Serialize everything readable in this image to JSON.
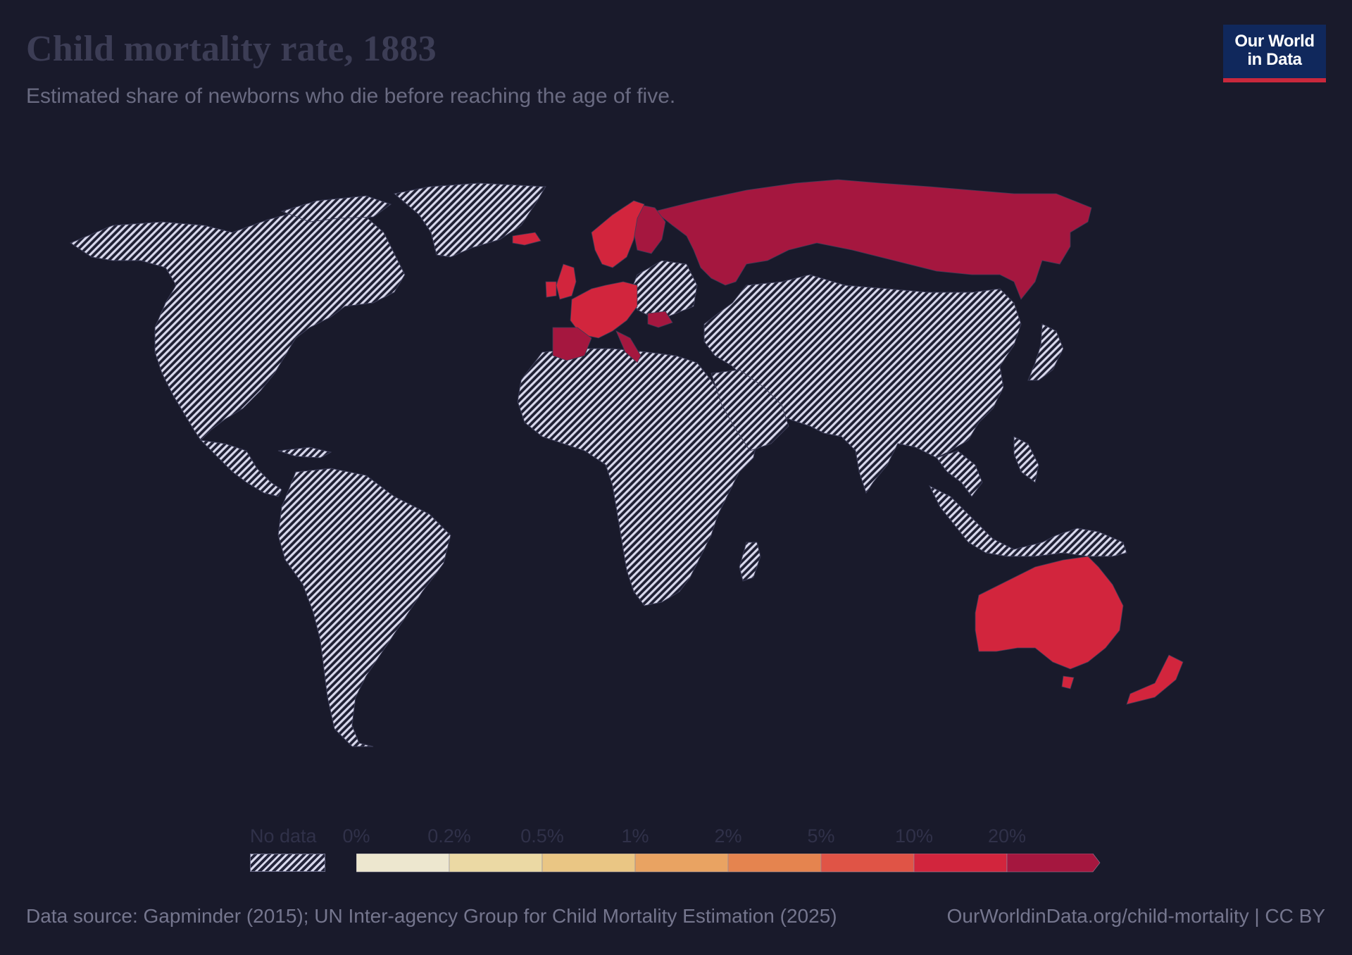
{
  "header": {
    "title": "Child mortality rate, 1883",
    "subtitle": "Estimated share of newborns who die before reaching the age of five."
  },
  "logo": {
    "line1": "Our World",
    "line2": "in Data"
  },
  "legend": {
    "no_data_label": "No data",
    "bins": [
      {
        "label": "0%",
        "color": "#ede7cf"
      },
      {
        "label": "0.2%",
        "color": "#ebd9a4"
      },
      {
        "label": "0.5%",
        "color": "#eac684"
      },
      {
        "label": "1%",
        "color": "#e9a362"
      },
      {
        "label": "2%",
        "color": "#e5844f"
      },
      {
        "label": "5%",
        "color": "#e05446"
      },
      {
        "label": "10%",
        "color": "#d2253d"
      },
      {
        "label": "20%",
        "color": "#a5173f"
      }
    ]
  },
  "map_data": {
    "type": "choropleth",
    "year": 1883,
    "no_data_color": "#d8d8ec",
    "regions_with_data": [
      {
        "name": "Russia",
        "color": "#a5173f",
        "bin": "20%+"
      },
      {
        "name": "Finland",
        "color": "#a5173f",
        "bin": "20%+"
      },
      {
        "name": "Sweden",
        "color": "#d2253d",
        "bin": "10%–20%"
      },
      {
        "name": "Norway",
        "color": "#d2253d",
        "bin": "10%–20%"
      },
      {
        "name": "Denmark",
        "color": "#d2253d",
        "bin": "10%–20%"
      },
      {
        "name": "United Kingdom",
        "color": "#d2253d",
        "bin": "10%–20%"
      },
      {
        "name": "Ireland",
        "color": "#d2253d",
        "bin": "10%–20%"
      },
      {
        "name": "Western Europe",
        "color": "#d2253d",
        "bin": "10%–20%"
      },
      {
        "name": "Iberia",
        "color": "#a5173f",
        "bin": "20%+"
      },
      {
        "name": "Italy",
        "color": "#a5173f",
        "bin": "20%+"
      },
      {
        "name": "Romania",
        "color": "#a5173f",
        "bin": "20%+"
      },
      {
        "name": "Iceland",
        "color": "#d2253d",
        "bin": "10%–20%"
      },
      {
        "name": "Australia",
        "color": "#d2253d",
        "bin": "10%–20%"
      },
      {
        "name": "New Zealand",
        "color": "#d2253d",
        "bin": "10%–20%"
      }
    ]
  },
  "footer": {
    "source": "Data source: Gapminder (2015); UN Inter-agency Group for Child Mortality Estimation (2025)",
    "url": "OurWorldinData.org/child-mortality | CC BY"
  }
}
